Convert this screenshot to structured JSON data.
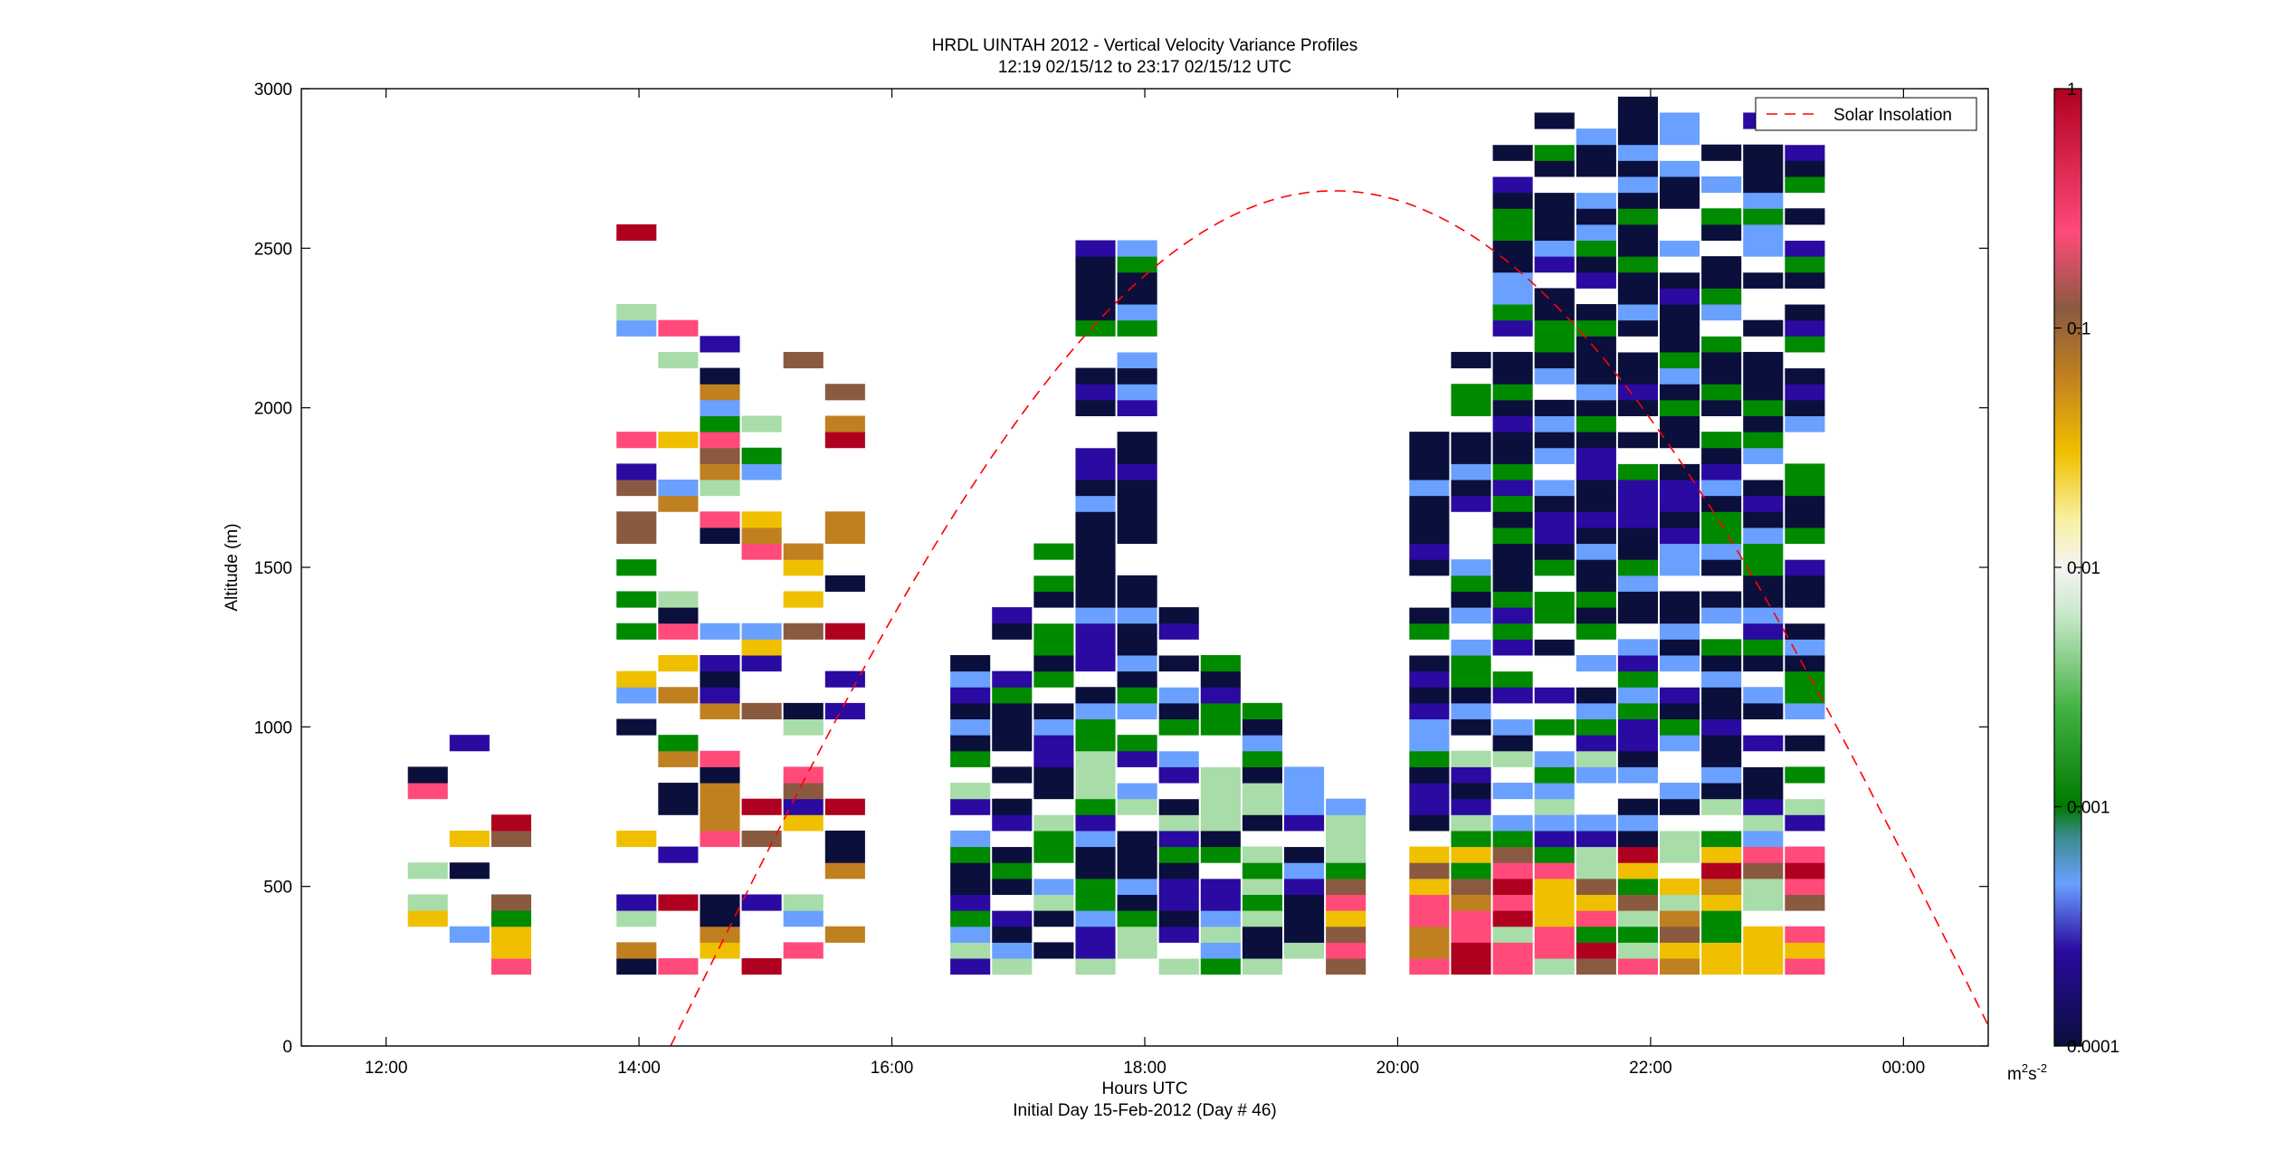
{
  "chart_data": {
    "type": "heatmap",
    "title": "HRDL UINTAH 2012 - Vertical Velocity Variance Profiles",
    "subtitle": "12:19 02/15/12 to 23:17 02/15/12  UTC",
    "xlabel": "Hours UTC",
    "xlabel2": "Initial Day 15-Feb-2012 (Day # 46)",
    "ylabel": "Altitude (m)",
    "x_ticks": [
      "12:00",
      "14:00",
      "16:00",
      "18:00",
      "20:00",
      "22:00",
      "00:00"
    ],
    "x_tick_hours": [
      12,
      14,
      16,
      18,
      20,
      22,
      24
    ],
    "xlim": [
      11.33,
      24.67
    ],
    "y_ticks": [
      "0",
      "500",
      "1000",
      "1500",
      "2000",
      "2500",
      "3000"
    ],
    "y_tick_values": [
      0,
      500,
      1000,
      1500,
      2000,
      2500,
      3000
    ],
    "ylim": [
      0,
      3000
    ],
    "colorbar": {
      "scale": "log",
      "range": [
        0.0001,
        1
      ],
      "tick_labels": [
        "1",
        "0.1",
        "0.01",
        "0.001",
        "0.0001"
      ],
      "tick_values": [
        1,
        0.1,
        0.01,
        0.001,
        0.0001
      ],
      "unit_base": "m",
      "unit_exp1": "2",
      "unit_mid": "s",
      "unit_exp2": "-2"
    },
    "legend": {
      "position": "top-right",
      "entries": [
        "Solar Insolation"
      ]
    },
    "solar_insolation": {
      "line_style": "dashed",
      "color": "#ff0000",
      "peak_hour": 19.5,
      "peak_altitude": 2680,
      "zero_hours": [
        14.25,
        24.75
      ]
    },
    "profiles": {
      "bin_width_hours": 0.33,
      "gate_height_m": 50,
      "first_hour": 12.33,
      "last_hour": 23.33,
      "lowest_gate_m": 225,
      "note_hour_ranges": [
        [
          12.33,
          13.0
        ],
        [
          13.67,
          15.67
        ],
        [
          16.33,
          19.67
        ],
        [
          20.0,
          23.33
        ]
      ]
    },
    "colors": {
      "low": "#0a0f3c",
      "mid_low": "#2a0aa0",
      "blue": "#6aa0ff",
      "green": "#008a00",
      "light_green": "#a8dca8",
      "white": "#ffffff",
      "yellow": "#f0c000",
      "orange": "#c08020",
      "brown": "#8a5a40",
      "pink": "#ff4a7a",
      "red": "#b00020"
    }
  }
}
